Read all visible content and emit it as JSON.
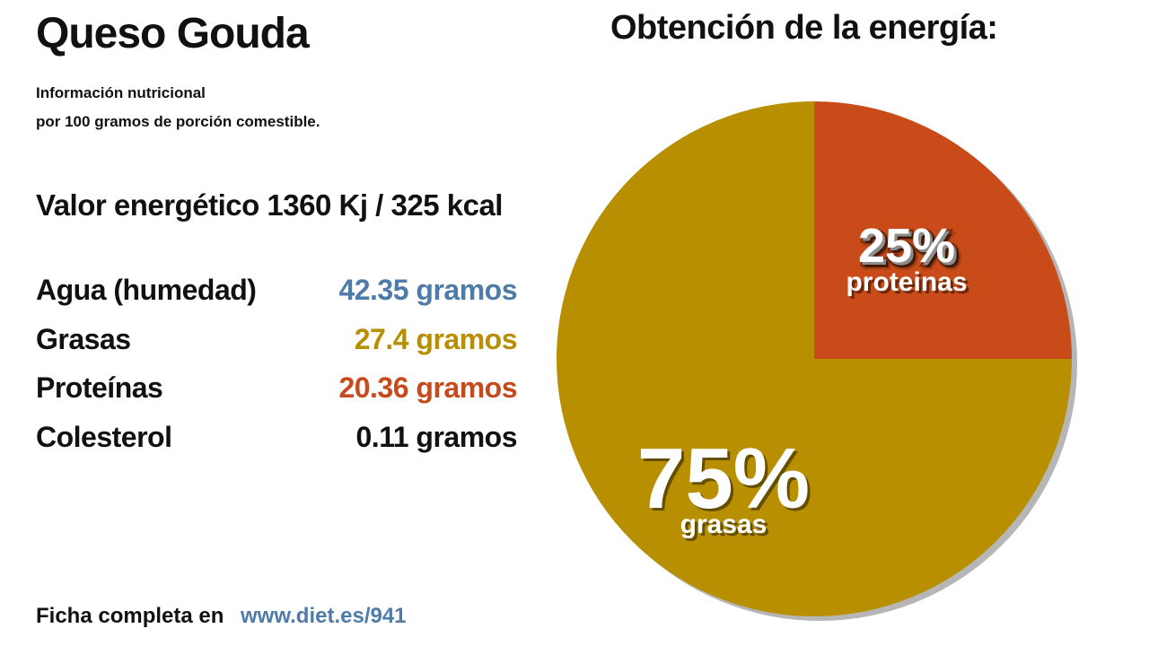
{
  "header": {
    "title": "Queso Gouda",
    "subtitle_line1": "Información nutricional",
    "subtitle_line2": "por 100 gramos de porción comestible."
  },
  "energy": "Valor energético 1360 Kj / 325 kcal",
  "nutrients": [
    {
      "label": "Agua (humedad)",
      "value": "42.35 gramos",
      "color": "#4f7ba8"
    },
    {
      "label": "Grasas",
      "value": "27.4 gramos",
      "color": "#b78f00"
    },
    {
      "label": "Proteínas",
      "value": "20.36 gramos",
      "color": "#c64a1c"
    },
    {
      "label": "Colesterol",
      "value": "0.11 gramos",
      "color": "#111111"
    }
  ],
  "footer": {
    "label": "Ficha completa en",
    "url": "www.diet.es/941",
    "url_color": "#4f7ba8"
  },
  "chart_data": {
    "type": "pie",
    "title": "Obtención de la energía:",
    "slices": [
      {
        "pct": 25,
        "pct_label": "25%",
        "name": "proteinas",
        "color": "#c84b19"
      },
      {
        "pct": 75,
        "pct_label": "75%",
        "name": "grasas",
        "color": "#b78f00"
      }
    ]
  }
}
